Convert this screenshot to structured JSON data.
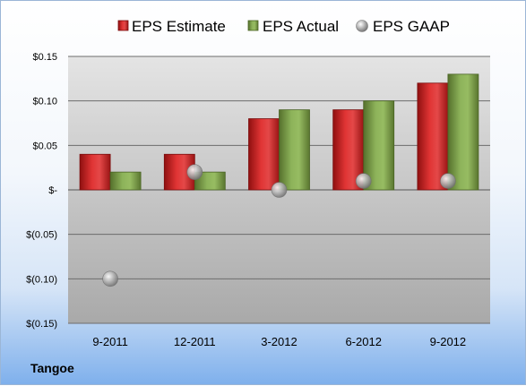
{
  "company_label": "Tangoe",
  "colors": {
    "estimate": "#d42a2a",
    "actual": "#7fa24a",
    "gaap": "#b4b4b4"
  },
  "chart_data": {
    "type": "bar",
    "categories": [
      "9-2011",
      "12-2011",
      "3-2012",
      "6-2012",
      "9-2012"
    ],
    "series": [
      {
        "name": "EPS Estimate",
        "kind": "bar",
        "values": [
          0.04,
          0.04,
          0.08,
          0.09,
          0.12
        ]
      },
      {
        "name": "EPS Actual",
        "kind": "bar",
        "values": [
          0.02,
          0.02,
          0.09,
          0.1,
          0.13
        ]
      },
      {
        "name": "EPS GAAP",
        "kind": "scatter",
        "values": [
          -0.1,
          0.02,
          0.0,
          0.01,
          0.01
        ]
      }
    ],
    "ylim": [
      -0.15,
      0.15
    ],
    "yticks": [
      0.15,
      0.1,
      0.05,
      0,
      -0.05,
      -0.1,
      -0.15
    ],
    "ytick_labels": [
      "$0.15",
      "$0.10",
      "$0.05",
      "$-",
      "$(0.05)",
      "$(0.10)",
      "$(0.15)"
    ],
    "grid": true,
    "legend_position": "top"
  }
}
